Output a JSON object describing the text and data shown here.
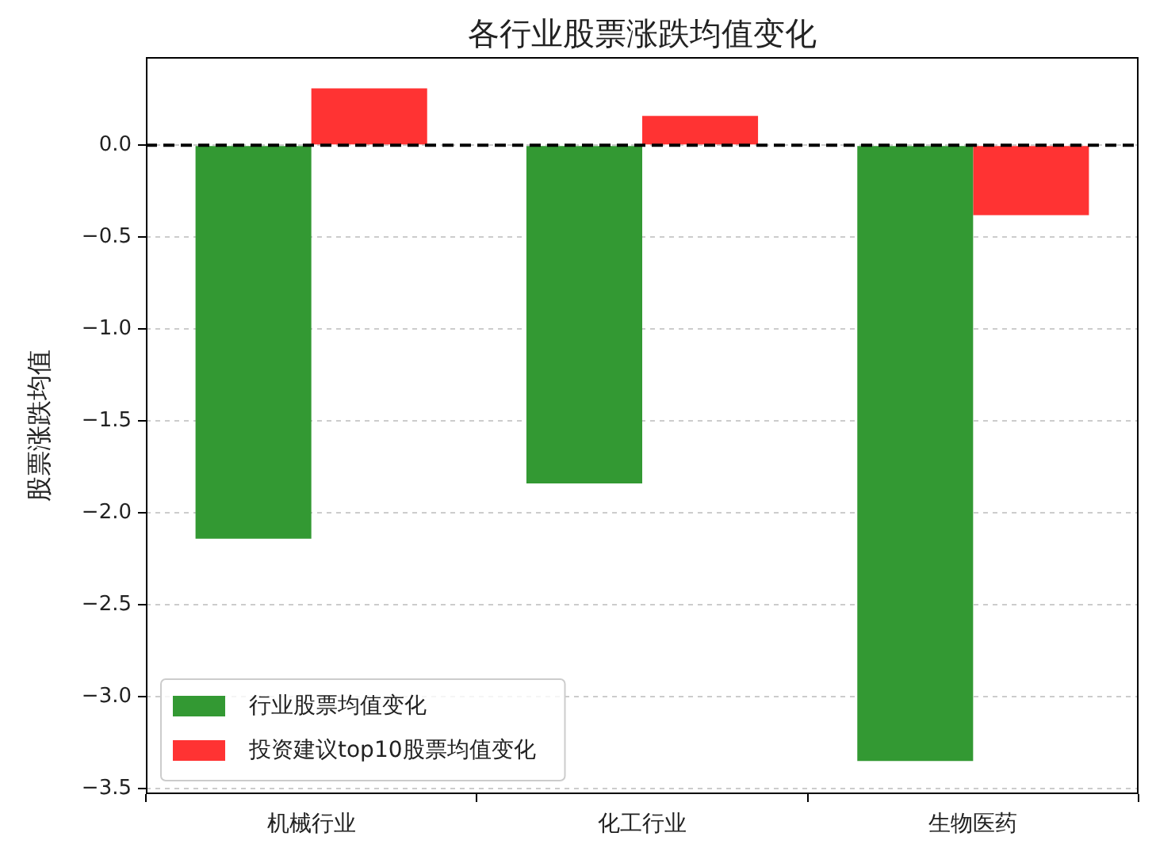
{
  "chart_data": {
    "type": "bar",
    "title": "各行业股票涨跌均值变化",
    "ylabel": "股票涨跌均值",
    "categories": [
      "机械行业",
      "化工行业",
      "生物医药"
    ],
    "series": [
      {
        "name": "行业股票均值变化",
        "color": "#339933",
        "values": [
          -2.14,
          -1.84,
          -3.35
        ]
      },
      {
        "name": "投资建议top10股票均值变化",
        "color": "#ff3333",
        "values": [
          0.31,
          0.16,
          -0.38
        ]
      }
    ],
    "ylim": [
      -3.53,
      0.48
    ],
    "yticks": [
      {
        "value": -3.5,
        "label": "−3.5"
      },
      {
        "value": -3.0,
        "label": "−3.0"
      },
      {
        "value": -2.5,
        "label": "−2.5"
      },
      {
        "value": -2.0,
        "label": "−2.0"
      },
      {
        "value": -1.5,
        "label": "−1.5"
      },
      {
        "value": -1.0,
        "label": "−1.0"
      },
      {
        "value": -0.5,
        "label": "−0.5"
      },
      {
        "value": 0,
        "label": "0.0"
      }
    ],
    "ref_lines": [
      {
        "axis": "y",
        "value": 0,
        "color": "#000000",
        "line_style": "dashed"
      }
    ],
    "grid": "y",
    "legend": "bottom left"
  }
}
